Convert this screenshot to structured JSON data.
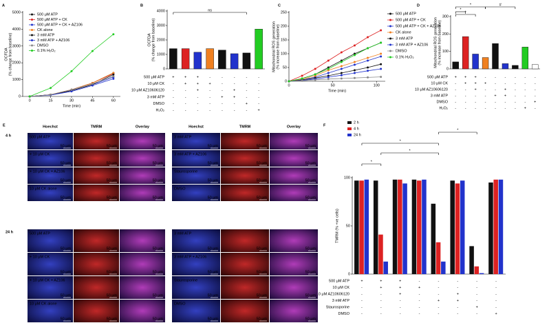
{
  "chart_data": [
    {
      "type": "line",
      "panel_label": "A",
      "ylabel": [
        "OCFDA",
        "(% change from baseline)"
      ],
      "xlabel": "Time (min)",
      "x": [
        0,
        15,
        30,
        45,
        60
      ],
      "xlim": [
        -5,
        65
      ],
      "xticks": [
        0,
        15,
        30,
        45,
        60
      ],
      "ylim": [
        0,
        5000
      ],
      "yticks": [
        0,
        1000,
        2000,
        3000,
        4000,
        5000
      ],
      "legend": "upper left",
      "series": [
        {
          "name": "500 μM ATP",
          "color": "#111111",
          "values": [
            0,
            100,
            400,
            800,
            1400
          ]
        },
        {
          "name": "500 μM ATP + CK",
          "color": "#dd2222",
          "values": [
            0,
            100,
            400,
            800,
            1350
          ]
        },
        {
          "name": "500 μM ATP + CK + AZ106",
          "color": "#2233cc",
          "values": [
            0,
            100,
            350,
            700,
            1150
          ]
        },
        {
          "name": "CK alone",
          "color": "#f08020",
          "values": [
            0,
            100,
            400,
            800,
            1400
          ]
        },
        {
          "name": "3 mM ATP",
          "color": "#111111",
          "values": [
            0,
            100,
            350,
            700,
            1300
          ]
        },
        {
          "name": "3 mM ATP + AZ106",
          "color": "#2233cc",
          "values": [
            0,
            80,
            300,
            650,
            1050
          ]
        },
        {
          "name": "DMSO",
          "color": "#888888",
          "values": [
            0,
            100,
            400,
            750,
            1200
          ]
        },
        {
          "name": "0.1% H₂O₂",
          "color": "#22cc22",
          "values": [
            0,
            500,
            1500,
            2700,
            3700
          ]
        }
      ]
    },
    {
      "type": "bar",
      "panel_label": "B",
      "ylabel": [
        "OCFDA",
        "(% change from baseline)"
      ],
      "values": [
        1400,
        1400,
        1150,
        1400,
        1300,
        1050,
        1100,
        2750
      ],
      "colors": [
        "#111111",
        "#dd2222",
        "#2233cc",
        "#f08020",
        "#111111",
        "#2233cc",
        "#111111",
        "#22cc22"
      ],
      "ylim": [
        0,
        4000
      ],
      "yticks": [
        0,
        1000,
        2000,
        3000,
        4000
      ],
      "annotations": [
        "ns"
      ],
      "treatments": [
        {
          "name": "500 μM ATP",
          "marks": [
            "+",
            "+",
            "+",
            "-",
            "-",
            "-",
            "-",
            "-"
          ]
        },
        {
          "name": "10 μM CK",
          "marks": [
            "-",
            "+",
            "+",
            "+",
            "-",
            "-",
            "-",
            "-"
          ]
        },
        {
          "name": "10 μM AZ10606120",
          "marks": [
            "-",
            "-",
            "+",
            "-",
            "-",
            "+",
            "-",
            "-"
          ]
        },
        {
          "name": "3 mM ATP",
          "marks": [
            "-",
            "-",
            "-",
            "-",
            "+",
            "+",
            "-",
            "-"
          ]
        },
        {
          "name": "DMSO",
          "marks": [
            "-",
            "-",
            "-",
            "-",
            "-",
            "-",
            "+",
            "-"
          ]
        },
        {
          "name": "H₂O₂",
          "marks": [
            "-",
            "-",
            "-",
            "-",
            "-",
            "-",
            "-",
            "+"
          ]
        }
      ]
    },
    {
      "type": "line",
      "panel_label": "C",
      "ylabel": [
        "Mitochondrial ROS generation",
        "(% increase from baseline)"
      ],
      "xlabel": "Time (min)",
      "x": [
        0,
        15,
        30,
        45,
        60,
        75,
        90,
        105
      ],
      "xlim": [
        0,
        110
      ],
      "xticks": [
        0,
        50,
        100
      ],
      "ylim": [
        0,
        250
      ],
      "yticks": [
        0,
        50,
        100,
        150,
        200,
        250
      ],
      "legend": "right",
      "series": [
        {
          "name": "500 μM ATP",
          "color": "#111111",
          "values": [
            0,
            10,
            25,
            50,
            75,
            100,
            120,
            140
          ]
        },
        {
          "name": "500 μM ATP + CK",
          "color": "#dd2222",
          "values": [
            0,
            20,
            45,
            75,
            105,
            130,
            160,
            185
          ]
        },
        {
          "name": "500 μM ATP + CK + AZ106",
          "color": "#2233cc",
          "values": [
            0,
            5,
            15,
            30,
            45,
            60,
            75,
            90
          ]
        },
        {
          "name": "CK alone",
          "color": "#f08020",
          "values": [
            0,
            8,
            20,
            40,
            55,
            70,
            85,
            100
          ]
        },
        {
          "name": "3 mM ATP",
          "color": "#111111",
          "values": [
            0,
            5,
            12,
            20,
            30,
            40,
            50,
            62
          ]
        },
        {
          "name": "3 mM ATP + AZ106",
          "color": "#2233cc",
          "values": [
            0,
            3,
            8,
            15,
            22,
            30,
            38,
            45
          ]
        },
        {
          "name": "DMSO",
          "color": "#888888",
          "values": [
            0,
            2,
            5,
            8,
            10,
            12,
            14,
            16
          ]
        },
        {
          "name": "0.1% H₂O₂",
          "color": "#22cc22",
          "values": [
            0,
            10,
            25,
            45,
            70,
            95,
            120,
            140
          ]
        }
      ]
    },
    {
      "type": "bar",
      "panel_label": "D",
      "ylabel": [
        "Mitochondrial ROS generation",
        "(% increase from baseline)"
      ],
      "values": [
        40,
        185,
        85,
        65,
        145,
        30,
        20,
        125,
        25
      ],
      "colors": [
        "#111111",
        "#dd2222",
        "#2233cc",
        "#f08020",
        "#111111",
        "#2233cc",
        "#111111",
        "#22cc22",
        "#ffffff"
      ],
      "ylim": [
        0,
        300
      ],
      "yticks": [
        0,
        100,
        200,
        300
      ],
      "annotations": [
        "*",
        "#",
        "*",
        "*"
      ],
      "treatments": [
        {
          "name": "500 μM ATP",
          "marks": [
            "+",
            "+",
            "+",
            "-",
            "-",
            "-",
            "-",
            "-",
            "-"
          ]
        },
        {
          "name": "10 μM CK",
          "marks": [
            "-",
            "+",
            "+",
            "+",
            "-",
            "-",
            "-",
            "-",
            "-"
          ]
        },
        {
          "name": "10 μM AZ10606120",
          "marks": [
            "-",
            "-",
            "+",
            "-",
            "-",
            "+",
            "-",
            "-",
            "-"
          ]
        },
        {
          "name": "3 mM ATP",
          "marks": [
            "-",
            "-",
            "-",
            "-",
            "+",
            "+",
            "-",
            "-",
            "-"
          ]
        },
        {
          "name": "DMSO",
          "marks": [
            "-",
            "-",
            "-",
            "-",
            "-",
            "-",
            "-",
            "-",
            "+"
          ]
        },
        {
          "name": "H₂O₂",
          "marks": [
            "-",
            "-",
            "-",
            "-",
            "-",
            "-",
            "-",
            "+",
            "-"
          ]
        }
      ]
    },
    {
      "type": "grouped_bar",
      "panel_label": "F",
      "ylabel": "TMRM (% +ve cells)",
      "ylim": [
        0,
        100
      ],
      "yticks": [
        0,
        50,
        100
      ],
      "legend": "upper left",
      "annotations": [
        "*",
        "*",
        "*",
        "*"
      ],
      "series": [
        {
          "name": "2 h",
          "color": "#111111",
          "values": [
            97,
            97,
            98,
            98,
            73,
            97,
            29,
            95
          ]
        },
        {
          "name": "4 h",
          "color": "#dd2222",
          "values": [
            97,
            41,
            98,
            97,
            33,
            94,
            8,
            98
          ]
        },
        {
          "name": "24 h",
          "color": "#2233cc",
          "values": [
            98,
            13,
            94,
            98,
            13,
            97,
            1,
            98
          ]
        }
      ],
      "treatments": [
        {
          "name": "500 μM ATP",
          "marks": [
            "+",
            "+",
            "+",
            "-",
            "-",
            "-",
            "-",
            "-"
          ]
        },
        {
          "name": "10 μM CK",
          "marks": [
            "-",
            "+",
            "+",
            "+",
            "-",
            "-",
            "-",
            "-"
          ]
        },
        {
          "name": "10 μM AZ10606120",
          "marks": [
            "-",
            "-",
            "+",
            "-",
            "-",
            "+",
            "-",
            "-"
          ]
        },
        {
          "name": "3 mM ATP",
          "marks": [
            "-",
            "-",
            "-",
            "-",
            "+",
            "+",
            "-",
            "-"
          ]
        },
        {
          "name": "Staurosporine",
          "marks": [
            "-",
            "-",
            "-",
            "-",
            "-",
            "-",
            "+",
            "-"
          ]
        },
        {
          "name": "DMSO",
          "marks": [
            "-",
            "-",
            "-",
            "-",
            "-",
            "-",
            "-",
            "+"
          ]
        }
      ]
    }
  ],
  "panel_e": {
    "panel_label": "E",
    "columns": [
      "Hoechst",
      "TMRM",
      "Overlay"
    ],
    "scale_bar": "50 μm",
    "blocks": [
      {
        "time": "4 h",
        "left": [
          "500 μM ATP",
          "+ 10 μM CK",
          "+ 10 μM CK + AZ106",
          "10 μM CK alone"
        ],
        "right": [
          "3 mM ATP",
          "3 mM ATP + AZ106",
          "Staurosporine",
          "DMSO"
        ]
      },
      {
        "time": "24 h",
        "left": [
          "500 μM ATP",
          "+ 10 μM CK",
          "+ 10 μM CK + AZ106",
          "10 μM CK alone"
        ],
        "right": [
          "3 mM ATP",
          "3 mM ATP + AZ106",
          "Staurosporine",
          "DMSO"
        ]
      }
    ]
  }
}
